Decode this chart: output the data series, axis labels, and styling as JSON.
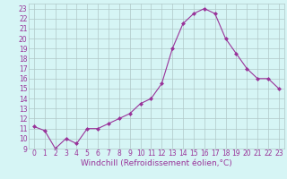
{
  "x": [
    0,
    1,
    2,
    3,
    4,
    5,
    6,
    7,
    8,
    9,
    10,
    11,
    12,
    13,
    14,
    15,
    16,
    17,
    18,
    19,
    20,
    21,
    22,
    23
  ],
  "y": [
    11.2,
    10.8,
    9.0,
    10.0,
    9.5,
    11.0,
    11.0,
    11.5,
    12.0,
    12.5,
    13.5,
    14.0,
    15.5,
    19.0,
    21.5,
    22.5,
    23.0,
    22.5,
    20.0,
    18.5,
    17.0,
    16.0,
    16.0,
    15.0
  ],
  "line_color": "#993399",
  "marker": "D",
  "marker_size": 2,
  "bg_color": "#d6f5f5",
  "grid_color": "#b0c8c8",
  "xlabel": "Windchill (Refroidissement éolien,°C)",
  "xlim": [
    -0.5,
    23.5
  ],
  "ylim": [
    9,
    23.5
  ],
  "xticks": [
    0,
    1,
    2,
    3,
    4,
    5,
    6,
    7,
    8,
    9,
    10,
    11,
    12,
    13,
    14,
    15,
    16,
    17,
    18,
    19,
    20,
    21,
    22,
    23
  ],
  "yticks": [
    9,
    10,
    11,
    12,
    13,
    14,
    15,
    16,
    17,
    18,
    19,
    20,
    21,
    22,
    23
  ],
  "tick_color": "#993399",
  "label_color": "#993399",
  "xlabel_fontsize": 6.5,
  "tick_fontsize": 5.5
}
